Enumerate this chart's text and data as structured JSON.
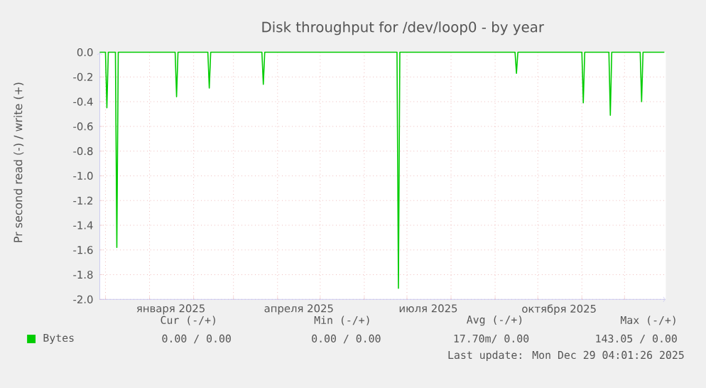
{
  "chart_data": {
    "type": "line",
    "title": "Disk throughput for /dev/loop0 - by year",
    "ylabel": "Pr second read (-) / write (+)",
    "xlim": [
      "2024-11-27",
      "2025-12-30"
    ],
    "xticks": [
      {
        "value": "2024-12-01",
        "label": null
      },
      {
        "value": "2025-01-01",
        "label": null
      },
      {
        "value": "2025-02-01",
        "label": null
      },
      {
        "value": "2025-03-01",
        "label": null
      },
      {
        "value": "2025-04-01",
        "label": null
      },
      {
        "value": "2025-05-01",
        "label": null
      },
      {
        "value": "2025-06-01",
        "label": null
      },
      {
        "value": "2025-07-01",
        "label": null
      },
      {
        "value": "2025-08-01",
        "label": null
      },
      {
        "value": "2025-09-01",
        "label": null
      },
      {
        "value": "2025-10-01",
        "label": null
      },
      {
        "value": "2025-11-01",
        "label": null
      },
      {
        "value": "2025-12-01",
        "label": null
      },
      {
        "value": "2025-01-16",
        "label": "января 2025"
      },
      {
        "value": "2025-04-16",
        "label": "апреля 2025"
      },
      {
        "value": "2025-07-16",
        "label": "июля 2025"
      },
      {
        "value": "2025-10-16",
        "label": "октября 2025"
      }
    ],
    "ylim": [
      -2.0,
      0.0
    ],
    "yticks": [
      {
        "value": 0,
        "label": "0.0"
      },
      {
        "value": -0.2,
        "label": "-0.2"
      },
      {
        "value": -0.4,
        "label": "-0.4"
      },
      {
        "value": -0.6,
        "label": "-0.6"
      },
      {
        "value": -0.8,
        "label": "-0.8"
      },
      {
        "value": -1.0,
        "label": "-1.0"
      },
      {
        "value": -1.2,
        "label": "-1.2"
      },
      {
        "value": -1.4,
        "label": "-1.4"
      },
      {
        "value": -1.6,
        "label": "-1.6"
      },
      {
        "value": -1.8,
        "label": "-1.8"
      },
      {
        "value": -2.0,
        "label": "-2.0"
      }
    ],
    "grid": true,
    "legend": "bottom",
    "marker": "none",
    "line_style": "solid",
    "series": [
      {
        "name": "Bytes",
        "color": "#00cc00",
        "x": [
          "2024-11-27",
          "2024-12-01",
          "2024-12-02",
          "2024-12-03",
          "2024-12-08",
          "2024-12-09",
          "2024-12-10",
          "2025-01-19",
          "2025-01-20",
          "2025-01-21",
          "2025-02-11",
          "2025-02-12",
          "2025-02-13",
          "2025-03-21",
          "2025-03-22",
          "2025-03-23",
          "2025-06-24",
          "2025-06-25",
          "2025-06-26",
          "2025-09-15",
          "2025-09-16",
          "2025-09-17",
          "2025-11-01",
          "2025-11-02",
          "2025-11-03",
          "2025-11-20",
          "2025-11-21",
          "2025-11-22",
          "2025-12-12",
          "2025-12-13",
          "2025-12-14",
          "2025-12-29"
        ],
        "values": [
          0,
          0,
          -0.45,
          0,
          0,
          -1.58,
          0,
          0,
          -0.36,
          0,
          0,
          -0.29,
          0,
          0,
          -0.26,
          0,
          0,
          -1.91,
          0,
          0,
          -0.17,
          0,
          0,
          -0.41,
          0,
          0,
          -0.51,
          0,
          0,
          -0.4,
          0,
          0
        ]
      }
    ],
    "annotations": [
      "Cur (-/+)",
      "Min (-/+)",
      "Avg (-/+)",
      "Max (-/+)",
      "0.00 /  0.00",
      "0.00 /  0.00",
      "17.70m/  0.00",
      "143.05 /  0.00",
      "Last update: Mon Dec 29 04:01:26 2025"
    ]
  }
}
